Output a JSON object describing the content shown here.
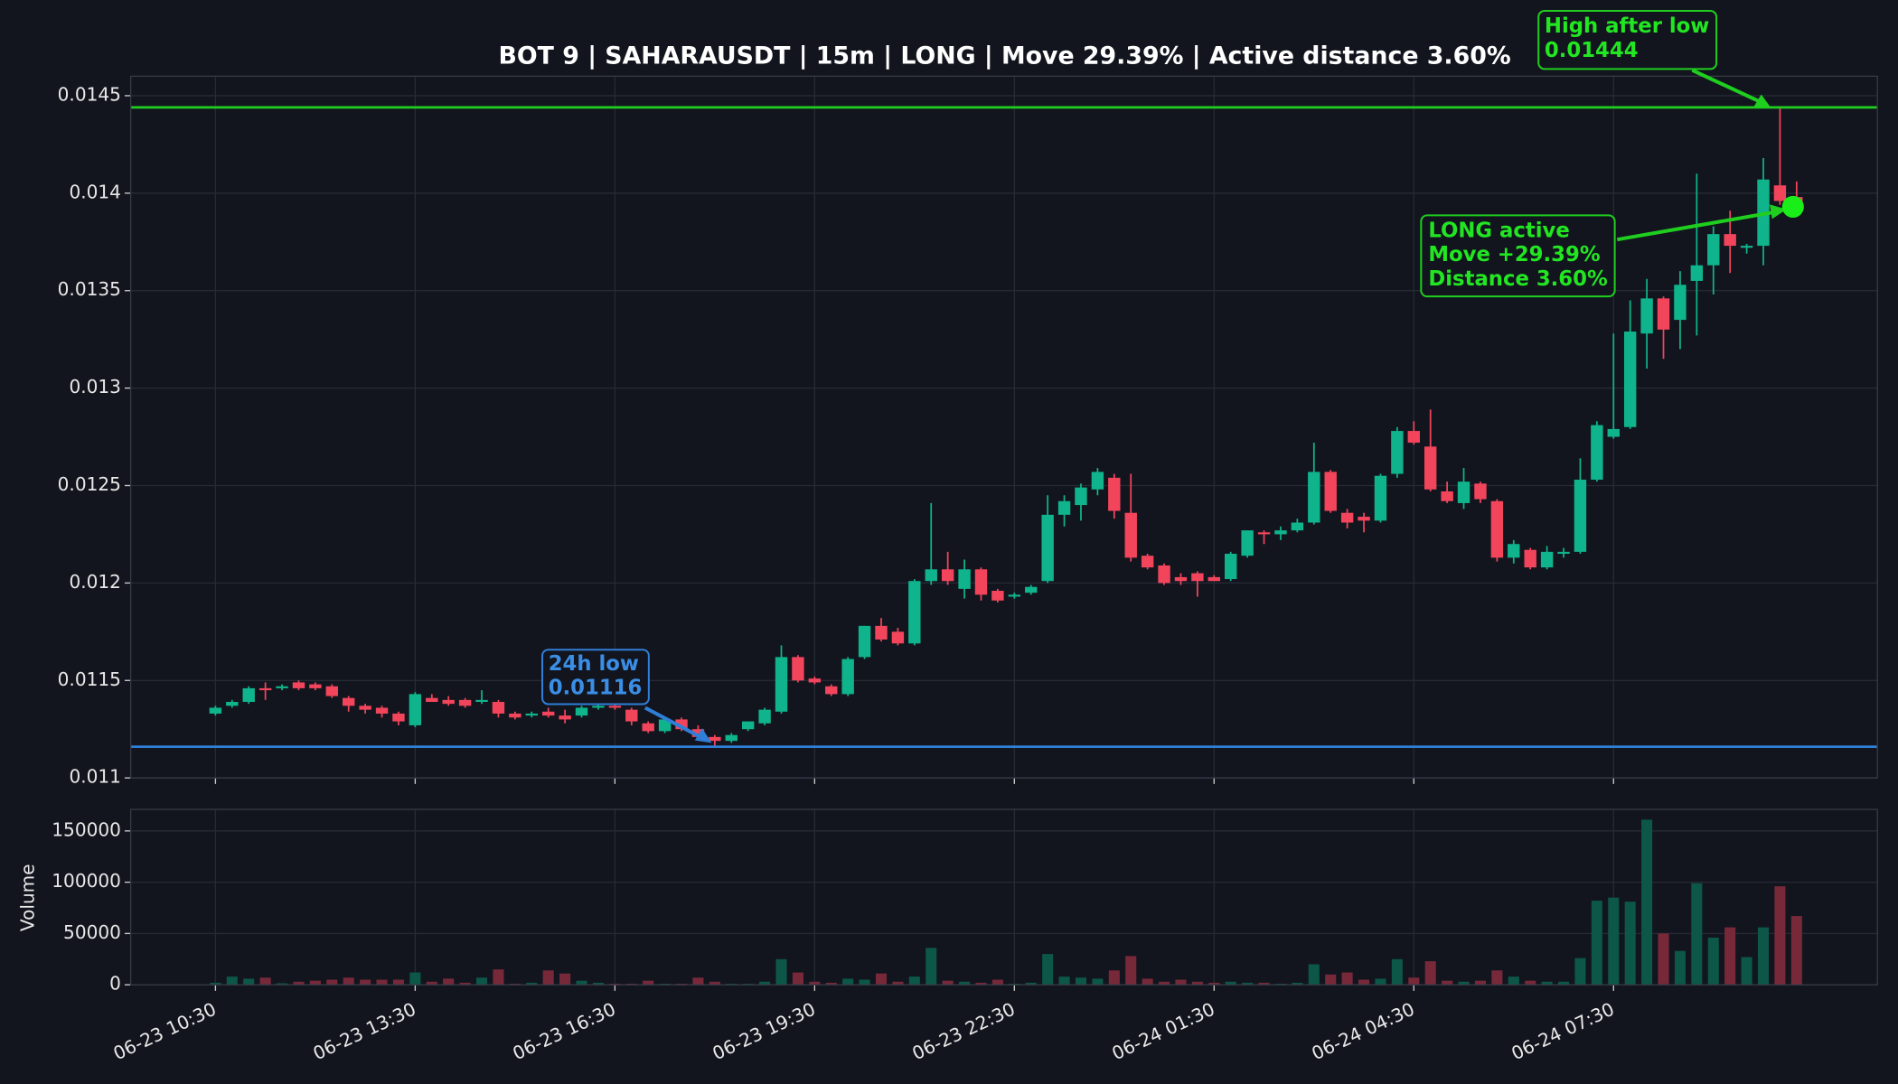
{
  "chart_data": {
    "type": "candlestick",
    "title": "BOT 9 | SAHARAUSDT | 15m | LONG | Move 29.39% | Active distance 3.60%",
    "categories": [
      "06-23 10:30",
      null,
      null,
      null,
      null,
      null,
      null,
      null,
      null,
      null,
      null,
      null,
      "06-23 13:30",
      null,
      null,
      null,
      null,
      null,
      null,
      null,
      null,
      null,
      null,
      null,
      "06-23 16:30",
      null,
      null,
      null,
      null,
      null,
      null,
      null,
      null,
      null,
      null,
      null,
      "06-23 19:30",
      null,
      null,
      null,
      null,
      null,
      null,
      null,
      null,
      null,
      null,
      null,
      "06-23 22:30",
      null,
      null,
      null,
      null,
      null,
      null,
      null,
      null,
      null,
      null,
      null,
      "06-24 01:30",
      null,
      null,
      null,
      null,
      null,
      null,
      null,
      null,
      null,
      null,
      null,
      "06-24 04:30",
      null,
      null,
      null,
      null,
      null,
      null,
      null,
      null,
      null,
      null,
      null,
      "06-24 07:30",
      null,
      null,
      null,
      null,
      null,
      null,
      null,
      null,
      null,
      null,
      null
    ],
    "open": [
      0.01133,
      0.01137,
      0.01139,
      0.01146,
      0.01146,
      0.01149,
      0.01148,
      0.01147,
      0.01141,
      0.01137,
      0.01136,
      0.01133,
      0.01127,
      0.01141,
      0.0114,
      0.0114,
      0.01139,
      0.01139,
      0.01133,
      0.01132,
      0.01134,
      0.01132,
      0.01132,
      0.01136,
      0.01137,
      0.01135,
      0.01128,
      0.01124,
      0.0113,
      0.01125,
      0.01121,
      0.01119,
      0.01125,
      0.01128,
      0.01134,
      0.01162,
      0.01151,
      0.01147,
      0.01143,
      0.01162,
      0.01178,
      0.01175,
      0.01169,
      0.01201,
      0.01207,
      0.01197,
      0.01207,
      0.01196,
      0.01193,
      0.01195,
      0.01201,
      0.01235,
      0.0124,
      0.01248,
      0.01254,
      0.01236,
      0.01214,
      0.01209,
      0.01203,
      0.01205,
      0.01203,
      0.01202,
      0.01214,
      0.01226,
      0.01225,
      0.01227,
      0.01231,
      0.01257,
      0.01236,
      0.01234,
      0.01232,
      0.01256,
      0.01278,
      0.0127,
      0.01247,
      0.01241,
      0.01251,
      0.01242,
      0.01213,
      0.01217,
      0.01208,
      0.01215,
      0.01216,
      0.01253,
      0.01275,
      0.0128,
      0.01328,
      0.01346,
      0.01335,
      0.01355,
      0.01363,
      0.01379,
      0.01372,
      0.01373,
      0.01404,
      0.01398
    ],
    "high": [
      0.01137,
      0.0114,
      0.01147,
      0.01149,
      0.01148,
      0.0115,
      0.01149,
      0.01148,
      0.01142,
      0.01138,
      0.01137,
      0.01134,
      0.01144,
      0.01143,
      0.01142,
      0.01141,
      0.01145,
      0.0114,
      0.01134,
      0.01134,
      0.01136,
      0.01135,
      0.01137,
      0.01138,
      0.01138,
      0.01136,
      0.01129,
      0.01131,
      0.01131,
      0.01127,
      0.01122,
      0.01123,
      0.01129,
      0.01136,
      0.01168,
      0.01163,
      0.01152,
      0.01148,
      0.01162,
      0.01178,
      0.01182,
      0.01177,
      0.01202,
      0.01241,
      0.01216,
      0.01212,
      0.01208,
      0.01197,
      0.01195,
      0.01199,
      0.01245,
      0.01245,
      0.01251,
      0.01259,
      0.01256,
      0.01256,
      0.01215,
      0.0121,
      0.01205,
      0.01206,
      0.01204,
      0.01216,
      0.01227,
      0.01227,
      0.01229,
      0.01233,
      0.01272,
      0.01258,
      0.01238,
      0.01236,
      0.01256,
      0.0128,
      0.01283,
      0.01289,
      0.01252,
      0.01259,
      0.01252,
      0.01243,
      0.01222,
      0.01218,
      0.01219,
      0.01218,
      0.01264,
      0.01283,
      0.01328,
      0.01345,
      0.01356,
      0.01347,
      0.0136,
      0.0141,
      0.01383,
      0.01391,
      0.01374,
      0.01418,
      0.01444,
      0.01406
    ],
    "low": [
      0.01132,
      0.01136,
      0.01138,
      0.0114,
      0.01145,
      0.01145,
      0.01145,
      0.01141,
      0.01134,
      0.01133,
      0.01131,
      0.01127,
      0.01126,
      0.01139,
      0.01137,
      0.01136,
      0.01138,
      0.01131,
      0.0113,
      0.01131,
      0.01131,
      0.01128,
      0.01131,
      0.01135,
      0.01135,
      0.01127,
      0.01123,
      0.01123,
      0.01124,
      0.0112,
      0.01116,
      0.01118,
      0.01124,
      0.01127,
      0.01133,
      0.01149,
      0.01148,
      0.01142,
      0.01142,
      0.01161,
      0.0117,
      0.01168,
      0.01168,
      0.01199,
      0.01199,
      0.01192,
      0.01191,
      0.0119,
      0.01192,
      0.01194,
      0.012,
      0.01229,
      0.01232,
      0.01245,
      0.01233,
      0.01211,
      0.01207,
      0.01199,
      0.01199,
      0.01193,
      0.01201,
      0.01201,
      0.01213,
      0.0122,
      0.01222,
      0.01226,
      0.0123,
      0.01236,
      0.01228,
      0.01226,
      0.01231,
      0.01254,
      0.01271,
      0.01247,
      0.01241,
      0.01238,
      0.01241,
      0.01211,
      0.0121,
      0.01207,
      0.01207,
      0.01213,
      0.01215,
      0.01252,
      0.01274,
      0.01279,
      0.0131,
      0.01315,
      0.0132,
      0.01327,
      0.01348,
      0.01359,
      0.01369,
      0.01363,
      0.01394,
      0.01388
    ],
    "close": [
      0.01136,
      0.01139,
      0.01146,
      0.01145,
      0.01147,
      0.01146,
      0.01146,
      0.01142,
      0.01137,
      0.01135,
      0.01133,
      0.01129,
      0.01143,
      0.01139,
      0.01138,
      0.01137,
      0.0114,
      0.01133,
      0.01131,
      0.01133,
      0.01132,
      0.0113,
      0.01136,
      0.01137,
      0.01136,
      0.01129,
      0.01124,
      0.0113,
      0.01125,
      0.01121,
      0.01119,
      0.01122,
      0.01129,
      0.01135,
      0.01162,
      0.0115,
      0.01149,
      0.01143,
      0.01161,
      0.01178,
      0.01171,
      0.01169,
      0.01201,
      0.01207,
      0.01201,
      0.01207,
      0.01194,
      0.01191,
      0.01194,
      0.01198,
      0.01235,
      0.01242,
      0.01249,
      0.01257,
      0.01237,
      0.01213,
      0.01208,
      0.012,
      0.01201,
      0.01201,
      0.01201,
      0.01215,
      0.01227,
      0.01225,
      0.01227,
      0.01231,
      0.01257,
      0.01237,
      0.01231,
      0.01232,
      0.01255,
      0.01278,
      0.01272,
      0.01248,
      0.01242,
      0.01252,
      0.01243,
      0.01213,
      0.0122,
      0.01208,
      0.01216,
      0.01216,
      0.01253,
      0.01281,
      0.01279,
      0.01329,
      0.01346,
      0.0133,
      0.01353,
      0.01363,
      0.01379,
      0.01373,
      0.01373,
      0.01407,
      0.01396,
      0.01394
    ],
    "volume": [
      2000,
      8000,
      6000,
      7000,
      1500,
      3000,
      4000,
      5000,
      7000,
      5000,
      5000,
      5000,
      12000,
      3000,
      6000,
      2000,
      7000,
      15000,
      1000,
      2000,
      14000,
      11000,
      4000,
      2000,
      1000,
      1000,
      4000,
      1000,
      1000,
      7000,
      3000,
      1000,
      1000,
      3000,
      25000,
      12000,
      3000,
      2000,
      6000,
      5000,
      11000,
      3000,
      8000,
      36000,
      4000,
      3000,
      2000,
      5000,
      1000,
      2000,
      30000,
      8000,
      7000,
      6000,
      14000,
      28000,
      6000,
      3000,
      5000,
      3000,
      2000,
      3000,
      2000,
      2000,
      1000,
      2000,
      20000,
      10000,
      12000,
      5000,
      6000,
      25000,
      7000,
      23000,
      4000,
      3000,
      4000,
      14000,
      8000,
      4000,
      3000,
      3000,
      26000,
      82000,
      85000,
      81000,
      161000,
      50000,
      33000,
      99000,
      46000,
      56000,
      27000,
      56000,
      96000,
      67000
    ],
    "ylim": [
      0.011,
      0.0146
    ],
    "yticks": [
      0.011,
      0.0115,
      0.012,
      0.0125,
      0.013,
      0.0135,
      0.014,
      0.0145
    ],
    "volume_label": "Volume",
    "volume_ylim": [
      0,
      171000
    ],
    "volume_yticks": [
      0,
      50000,
      100000,
      150000
    ],
    "grid": true,
    "up_color": "#10b48c",
    "down_color": "#f2455c",
    "volume_up_color": "#0c5747",
    "volume_down_color": "#77293a",
    "low_line": {
      "value": 0.01116,
      "color": "#2f7fd8"
    },
    "high_line": {
      "value": 0.01444,
      "color": "#1fce1f"
    },
    "active_point": {
      "value": 0.01393,
      "color": "#19ee19"
    },
    "annotations": [
      {
        "lines": [
          "24h low",
          "0.01116"
        ]
      },
      {
        "lines": [
          "High after low",
          "0.01444"
        ]
      },
      {
        "lines": [
          "LONG active",
          "Move +29.39%",
          "Distance 3.60%"
        ]
      }
    ]
  }
}
